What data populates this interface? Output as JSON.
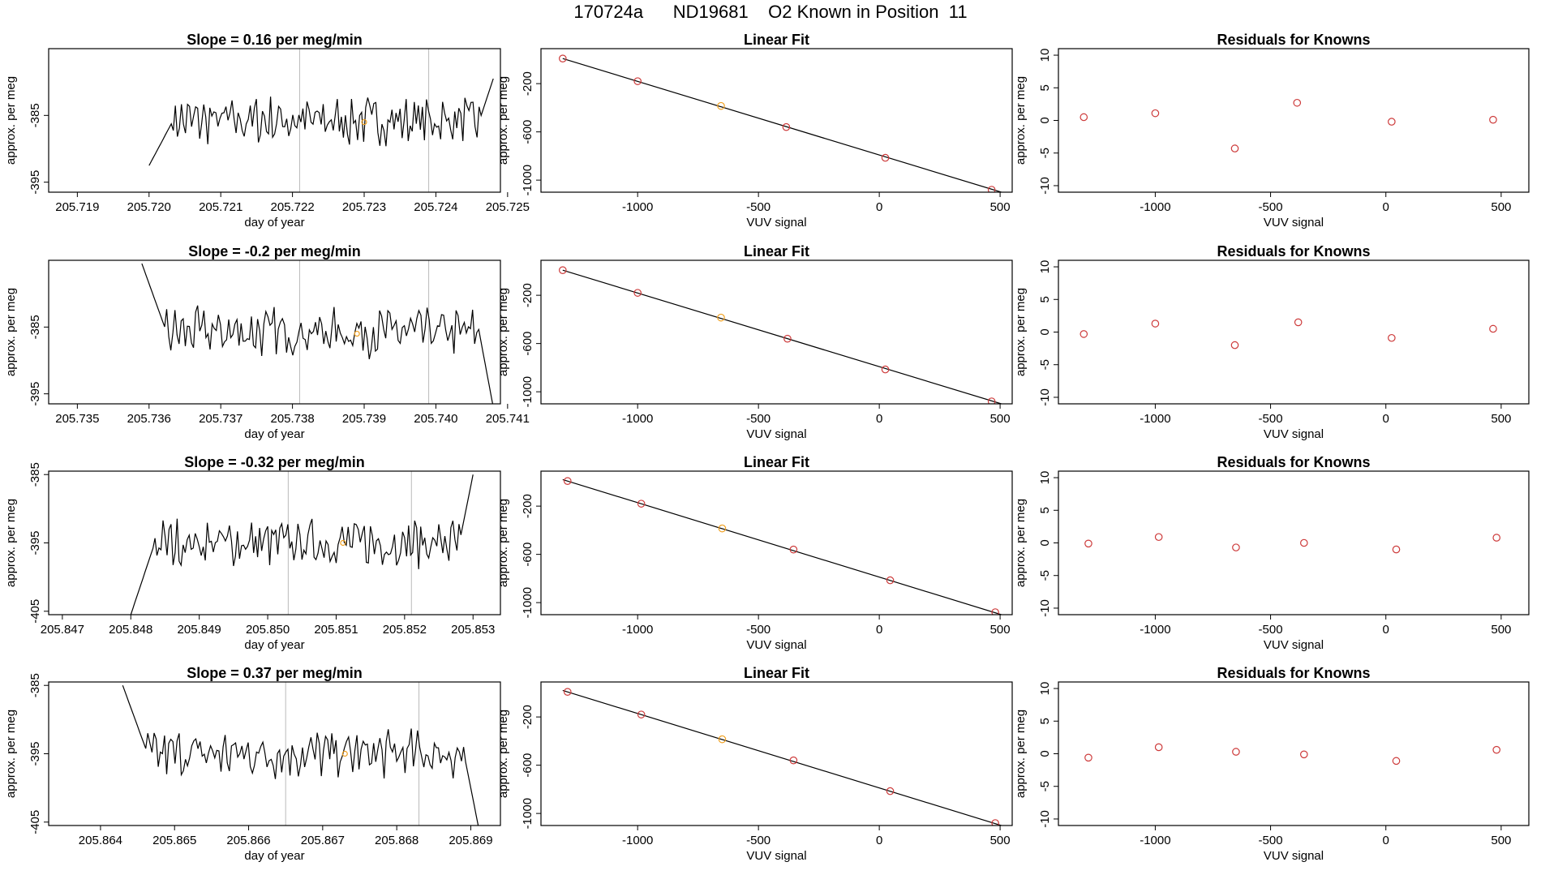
{
  "page_title": "170724a      ND19681    O2 Known in Position  11",
  "colors": {
    "line": "#000000",
    "point": "#cd3a3a",
    "highlight": "#f0a020",
    "gridline": "#bbbbbb"
  },
  "rows": [
    {
      "timeseries": {
        "type": "line",
        "title": "Slope =  0.16  per meg/min",
        "xlabel": "day of year",
        "ylabel": "approx. per meg",
        "xlim": [
          205.7186,
          205.7249
        ],
        "ylim": [
          -396.5,
          -375
        ],
        "xticks": [
          205.719,
          205.72,
          205.721,
          205.722,
          205.723,
          205.724,
          205.725
        ],
        "xticklabels": [
          "205.719",
          "205.720",
          "205.721",
          "205.722",
          "205.723",
          "205.724",
          "205.725"
        ],
        "yticks": [
          -385,
          -395
        ],
        "yticklabels": [
          "-385",
          "-395"
        ],
        "vlines": [
          205.7221,
          205.7239
        ],
        "segments": [
          [
            205.72,
            205.7248,
            -392.5,
            -379.5
          ]
        ],
        "highlight_point": {
          "x": 205.723,
          "y": -386
        }
      },
      "linear_fit": {
        "type": "scatter",
        "title": "Linear Fit",
        "xlabel": "VUV signal",
        "ylabel": "approx. per meg",
        "xlim": [
          -1400,
          550
        ],
        "ylim": [
          -1100,
          90
        ],
        "xticks": [
          -1000,
          -500,
          0,
          500
        ],
        "xticklabels": [
          "-1000",
          "-500",
          "0",
          "500"
        ],
        "yticks": [
          -200,
          -600,
          -1000
        ],
        "yticklabels": [
          "-200",
          "-600",
          "-1000"
        ],
        "points": [
          [
            -1310,
            8
          ],
          [
            -1000,
            -180
          ],
          [
            -655,
            -385
          ],
          [
            -385,
            -560
          ],
          [
            25,
            -815
          ],
          [
            465,
            -1080
          ]
        ],
        "highlight_index": 2,
        "fit_line": [
          [
            -1310,
            8
          ],
          [
            505,
            -1100
          ]
        ]
      },
      "residuals": {
        "type": "scatter",
        "title": "Residuals for Knowns",
        "xlabel": "VUV signal",
        "ylabel": "approx. per meg",
        "xlim": [
          -1420,
          620
        ],
        "ylim": [
          -11,
          11
        ],
        "xticks": [
          -1000,
          -500,
          0,
          500
        ],
        "xticklabels": [
          "-1000",
          "-500",
          "0",
          "500"
        ],
        "yticks": [
          10,
          5,
          0,
          -5,
          -10
        ],
        "yticklabels": [
          "10",
          "5",
          "0",
          "-5",
          "-10"
        ],
        "points": [
          [
            -1310,
            0.5
          ],
          [
            -1000,
            1.1
          ],
          [
            -655,
            -4.3
          ],
          [
            -385,
            2.7
          ],
          [
            25,
            -0.2
          ],
          [
            465,
            0.1
          ]
        ]
      }
    },
    {
      "timeseries": {
        "type": "line",
        "title": "Slope =  -0.2  per meg/min",
        "xlabel": "day of year",
        "ylabel": "approx. per meg",
        "xlim": [
          205.7346,
          205.7409
        ],
        "ylim": [
          -396.5,
          -375
        ],
        "xticks": [
          205.735,
          205.736,
          205.737,
          205.738,
          205.739,
          205.74,
          205.741
        ],
        "xticklabels": [
          "205.735",
          "205.736",
          "205.737",
          "205.738",
          "205.739",
          "205.740",
          "205.741"
        ],
        "yticks": [
          -385,
          -395
        ],
        "yticklabels": [
          "-385",
          "-395"
        ],
        "vlines": [
          205.7381,
          205.7399
        ],
        "segments": [
          [
            205.7359,
            205.7408,
            -375.5,
            -397
          ]
        ],
        "highlight_point": {
          "x": 205.7389,
          "y": -386
        }
      },
      "linear_fit": {
        "type": "scatter",
        "title": "Linear Fit",
        "xlabel": "VUV signal",
        "ylabel": "approx. per meg",
        "xlim": [
          -1400,
          550
        ],
        "ylim": [
          -1100,
          90
        ],
        "xticks": [
          -1000,
          -500,
          0,
          500
        ],
        "xticklabels": [
          "-1000",
          "-500",
          "0",
          "500"
        ],
        "yticks": [
          -200,
          -600,
          -1000
        ],
        "yticklabels": [
          "-200",
          "-600",
          "-1000"
        ],
        "points": [
          [
            -1310,
            8
          ],
          [
            -1000,
            -180
          ],
          [
            -655,
            -385
          ],
          [
            -380,
            -560
          ],
          [
            25,
            -815
          ],
          [
            465,
            -1080
          ]
        ],
        "highlight_index": 2,
        "fit_line": [
          [
            -1310,
            8
          ],
          [
            505,
            -1100
          ]
        ]
      },
      "residuals": {
        "type": "scatter",
        "title": "Residuals for Knowns",
        "xlabel": "VUV signal",
        "ylabel": "approx. per meg",
        "xlim": [
          -1420,
          620
        ],
        "ylim": [
          -11,
          11
        ],
        "xticks": [
          -1000,
          -500,
          0,
          500
        ],
        "xticklabels": [
          "-1000",
          "-500",
          "0",
          "500"
        ],
        "yticks": [
          10,
          5,
          0,
          -5,
          -10
        ],
        "yticklabels": [
          "10",
          "5",
          "0",
          "-5",
          "-10"
        ],
        "points": [
          [
            -1310,
            -0.3
          ],
          [
            -1000,
            1.3
          ],
          [
            -655,
            -2.0
          ],
          [
            -380,
            1.5
          ],
          [
            25,
            -0.9
          ],
          [
            465,
            0.5
          ]
        ]
      }
    },
    {
      "timeseries": {
        "type": "line",
        "title": "Slope =  -0.32  per meg/min",
        "xlabel": "day of year",
        "ylabel": "approx. per meg",
        "xlim": [
          205.8468,
          205.8534
        ],
        "ylim": [
          -405.5,
          -384.5
        ],
        "xticks": [
          205.847,
          205.848,
          205.849,
          205.85,
          205.851,
          205.852,
          205.853
        ],
        "xticklabels": [
          "205.847",
          "205.848",
          "205.849",
          "205.850",
          "205.851",
          "205.852",
          "205.853"
        ],
        "yticks": [
          -385,
          -395,
          -405
        ],
        "yticklabels": [
          "-385",
          "-395",
          "-405"
        ],
        "vlines": [
          205.8503,
          205.8521
        ],
        "segments": [
          [
            205.848,
            205.853,
            -405.5,
            -385
          ]
        ],
        "highlight_point": {
          "x": 205.8511,
          "y": -395
        }
      },
      "linear_fit": {
        "type": "scatter",
        "title": "Linear Fit",
        "xlabel": "VUV signal",
        "ylabel": "approx. per meg",
        "xlim": [
          -1400,
          550
        ],
        "ylim": [
          -1100,
          90
        ],
        "xticks": [
          -1000,
          -500,
          0,
          500
        ],
        "xticklabels": [
          "-1000",
          "-500",
          "0",
          "500"
        ],
        "yticks": [
          -200,
          -600,
          -1000
        ],
        "yticklabels": [
          "-200",
          "-600",
          "-1000"
        ],
        "points": [
          [
            -1290,
            8
          ],
          [
            -985,
            -180
          ],
          [
            -650,
            -385
          ],
          [
            -355,
            -560
          ],
          [
            45,
            -815
          ],
          [
            480,
            -1080
          ]
        ],
        "highlight_index": 2,
        "fit_line": [
          [
            -1310,
            20
          ],
          [
            505,
            -1100
          ]
        ]
      },
      "residuals": {
        "type": "scatter",
        "title": "Residuals for Knowns",
        "xlabel": "VUV signal",
        "ylabel": "approx. per meg",
        "xlim": [
          -1420,
          620
        ],
        "ylim": [
          -11,
          11
        ],
        "xticks": [
          -1000,
          -500,
          0,
          500
        ],
        "xticklabels": [
          "-1000",
          "-500",
          "0",
          "500"
        ],
        "points": [
          [
            -1290,
            -0.1
          ],
          [
            -985,
            0.9
          ],
          [
            -650,
            -0.7
          ],
          [
            -355,
            0.0
          ],
          [
            45,
            -1.0
          ],
          [
            480,
            0.8
          ]
        ],
        "yticks": [
          10,
          5,
          0,
          -5,
          -10
        ],
        "yticklabels": [
          "10",
          "5",
          "0",
          "-5",
          "-10"
        ]
      }
    },
    {
      "timeseries": {
        "type": "line",
        "title": "Slope =  0.37  per meg/min",
        "xlabel": "day of year",
        "ylabel": "approx. per meg",
        "xlim": [
          205.8633,
          205.8694
        ],
        "ylim": [
          -405.5,
          -384.5
        ],
        "xticks": [
          205.864,
          205.865,
          205.866,
          205.867,
          205.868,
          205.869
        ],
        "xticklabels": [
          "205.864",
          "205.865",
          "205.866",
          "205.867",
          "205.868",
          "205.869"
        ],
        "yticks": [
          -385,
          -395,
          -405
        ],
        "yticklabels": [
          "-385",
          "-395",
          "-405"
        ],
        "vlines": [
          205.8665,
          205.8683
        ],
        "segments": [
          [
            205.8643,
            205.8691,
            -385,
            -405.5
          ]
        ],
        "highlight_point": {
          "x": 205.8673,
          "y": -395
        }
      },
      "linear_fit": {
        "type": "scatter",
        "title": "Linear Fit",
        "xlabel": "VUV signal",
        "ylabel": "approx. per meg",
        "xlim": [
          -1400,
          550
        ],
        "ylim": [
          -1100,
          90
        ],
        "xticks": [
          -1000,
          -500,
          0,
          500
        ],
        "xticklabels": [
          "-1000",
          "-500",
          "0",
          "500"
        ],
        "yticks": [
          -200,
          -600,
          -1000
        ],
        "yticklabels": [
          "-200",
          "-600",
          "-1000"
        ],
        "points": [
          [
            -1290,
            8
          ],
          [
            -985,
            -180
          ],
          [
            -650,
            -385
          ],
          [
            -355,
            -560
          ],
          [
            45,
            -815
          ],
          [
            480,
            -1080
          ]
        ],
        "highlight_index": 2,
        "fit_line": [
          [
            -1310,
            20
          ],
          [
            505,
            -1100
          ]
        ]
      },
      "residuals": {
        "type": "scatter",
        "title": "Residuals for Knowns",
        "xlabel": "VUV signal",
        "ylabel": "approx. per meg",
        "xlim": [
          -1420,
          620
        ],
        "ylim": [
          -11,
          11
        ],
        "xticks": [
          -1000,
          -500,
          0,
          500
        ],
        "xticklabels": [
          "-1000",
          "-500",
          "0",
          "500"
        ],
        "yticks": [
          10,
          5,
          0,
          -5,
          -10
        ],
        "yticklabels": [
          "10",
          "5",
          "0",
          "-5",
          "-10"
        ],
        "points": [
          [
            -1290,
            -0.6
          ],
          [
            -985,
            1.0
          ],
          [
            -650,
            0.3
          ],
          [
            -355,
            -0.1
          ],
          [
            45,
            -1.1
          ],
          [
            480,
            0.6
          ]
        ]
      }
    }
  ]
}
